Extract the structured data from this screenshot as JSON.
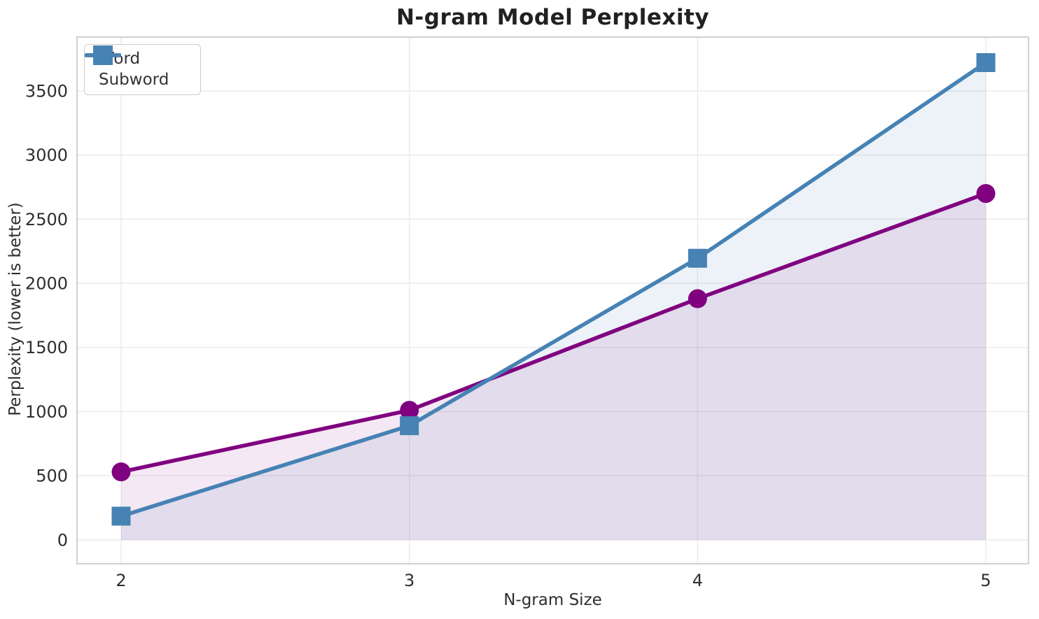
{
  "chart_data": {
    "type": "line",
    "title": "N-gram Model Perplexity",
    "xlabel": "N-gram Size",
    "ylabel": "Perplexity (lower is better)",
    "x": [
      2,
      3,
      4,
      5
    ],
    "series": [
      {
        "name": "Word",
        "marker": "circle",
        "color": "#800080",
        "fill_color": "rgba(128,0,128,0.09)",
        "values": [
          530,
          1010,
          1880,
          2700
        ]
      },
      {
        "name": "Subword",
        "marker": "square",
        "color": "#4682B4",
        "fill_color": "rgba(70,130,180,0.10)",
        "values": [
          185,
          890,
          2195,
          3720
        ]
      }
    ],
    "xticks": [
      2,
      3,
      4,
      5
    ],
    "yticks": [
      0,
      500,
      1000,
      1500,
      2000,
      2500,
      3000,
      3500
    ],
    "xlim": [
      1.847,
      5.148
    ],
    "ylim": [
      -186,
      3919
    ],
    "fill_baseline": 0,
    "grid": true,
    "legend_position": "upper left"
  },
  "style": {
    "grid_color": "#ebebeb",
    "spine_color": "#cccccc",
    "tick_text_color": "#2e2e2e",
    "background": "#ffffff"
  }
}
